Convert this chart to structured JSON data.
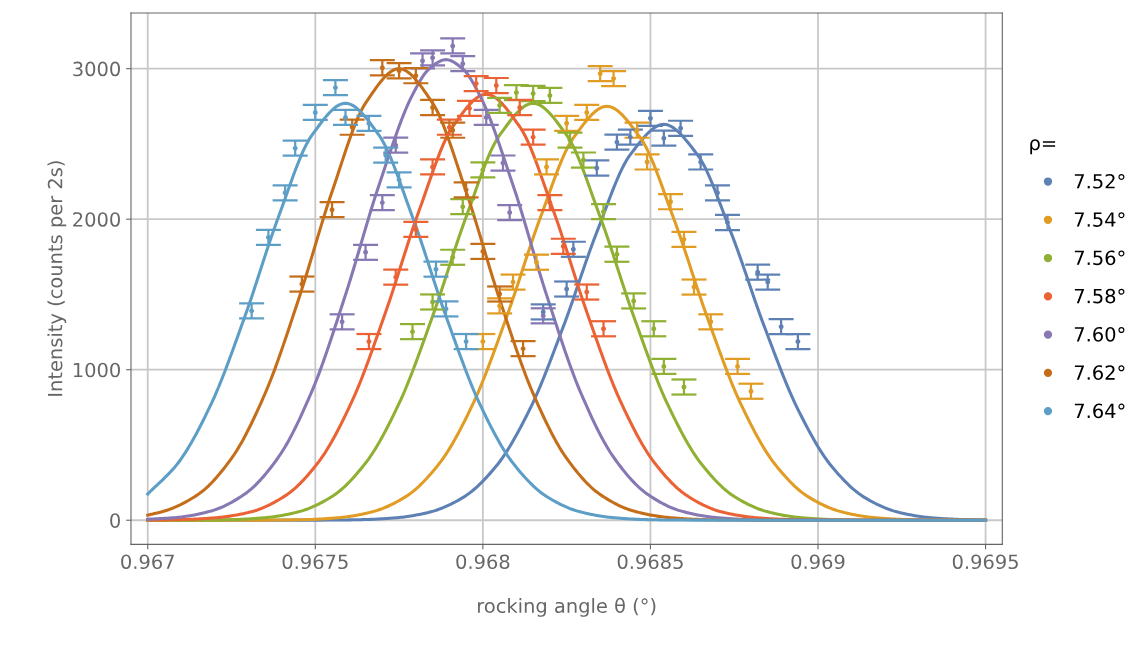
{
  "chart_data": {
    "type": "scatter",
    "xlabel": "rocking angle θ (°)",
    "ylabel": "Intensity (counts per 2s)",
    "legend_title": "ρ=",
    "legend": "right",
    "grid": true,
    "xlim": [
      0.96695,
      0.96955
    ],
    "ylim": [
      -160,
      3370
    ],
    "xticks": [
      0.967,
      0.9675,
      0.968,
      0.9685,
      0.969,
      0.9695
    ],
    "yticks": [
      0,
      1000,
      2000,
      3000
    ],
    "series": [
      {
        "type": "line",
        "color": "#5e81b5",
        "x": [
          0.967,
          0.96754,
          0.96764,
          0.96774,
          0.96784,
          0.96794,
          0.96804,
          0.96814,
          0.96824,
          0.96834,
          0.96844,
          0.96854,
          0.96864,
          0.96874,
          0.96884,
          0.96894,
          0.96904,
          0.96914,
          0.96924,
          0.96934,
          0.96944,
          0.9695
        ],
        "values": [
          0,
          1,
          4,
          16,
          53,
          150,
          360,
          737,
          1286,
          1914,
          2429,
          2630,
          2429,
          1914,
          1286,
          737,
          360,
          150,
          53,
          16,
          4,
          1
        ]
      },
      {
        "type": "line",
        "color": "#e19c24",
        "x": [
          0.967,
          0.96737,
          0.96747,
          0.96757,
          0.96767,
          0.96777,
          0.96787,
          0.96797,
          0.96807,
          0.96817,
          0.96827,
          0.96837,
          0.96847,
          0.96857,
          0.96867,
          0.96877,
          0.96887,
          0.96897,
          0.96907,
          0.96917,
          0.96927,
          0.96937,
          0.9695
        ],
        "values": [
          0,
          1,
          4,
          17,
          56,
          157,
          377,
          771,
          1345,
          2001,
          2540,
          2750,
          2540,
          2001,
          1345,
          771,
          377,
          157,
          56,
          17,
          4,
          1,
          0
        ]
      },
      {
        "type": "line",
        "color": "#8fb032",
        "x": [
          0.967,
          0.96715,
          0.96725,
          0.96735,
          0.96745,
          0.96755,
          0.96765,
          0.96775,
          0.96785,
          0.96795,
          0.96805,
          0.96815,
          0.96825,
          0.96835,
          0.96845,
          0.96855,
          0.96865,
          0.96875,
          0.96885,
          0.96895,
          0.96905,
          0.96915,
          0.9695
        ],
        "values": [
          0,
          1,
          4,
          17,
          56,
          158,
          380,
          776,
          1355,
          2015,
          2558,
          2770,
          2558,
          2015,
          1355,
          776,
          380,
          158,
          56,
          17,
          4,
          1,
          0
        ]
      },
      {
        "type": "line",
        "color": "#eb6235",
        "x": [
          0.967,
          0.96711,
          0.96721,
          0.96731,
          0.96741,
          0.96751,
          0.96761,
          0.96771,
          0.96781,
          0.96791,
          0.96801,
          0.96811,
          0.96821,
          0.96831,
          0.96841,
          0.96851,
          0.96861,
          0.96871,
          0.96881,
          0.96891,
          0.96901,
          0.9695
        ],
        "values": [
          1,
          5,
          18,
          57,
          162,
          388,
          793,
          1384,
          2059,
          2614,
          2830,
          2614,
          2059,
          1384,
          793,
          388,
          162,
          57,
          18,
          5,
          1,
          0
        ]
      },
      {
        "type": "line",
        "color": "#8778b3",
        "x": [
          0.967,
          0.96709,
          0.96719,
          0.96729,
          0.96739,
          0.96749,
          0.96759,
          0.96769,
          0.96779,
          0.96784,
          0.96789,
          0.96794,
          0.96799,
          0.96809,
          0.96819,
          0.96829,
          0.96839,
          0.96849,
          0.96859,
          0.96869,
          0.96879,
          0.96889,
          0.9695
        ],
        "values": [
          6,
          19,
          62,
          175,
          419,
          858,
          1497,
          2226,
          2826,
          2999,
          3060,
          2999,
          2826,
          2226,
          1497,
          858,
          419,
          175,
          62,
          19,
          5,
          1,
          0
        ]
      },
      {
        "type": "line",
        "color": "#c56e1a",
        "x": [
          0.967,
          0.96705,
          0.96715,
          0.96725,
          0.96735,
          0.96745,
          0.96755,
          0.96765,
          0.96775,
          0.96785,
          0.96795,
          0.96805,
          0.96815,
          0.96825,
          0.96835,
          0.96845,
          0.96855,
          0.96865,
          0.96875,
          0.9695
        ],
        "values": [
          34,
          61,
          171,
          411,
          841,
          1467,
          2183,
          2771,
          3000,
          2771,
          2183,
          1467,
          841,
          411,
          171,
          61,
          19,
          5,
          1,
          0
        ]
      },
      {
        "type": "line",
        "color": "#5d9ec7",
        "x": [
          0.967,
          0.96709,
          0.96719,
          0.96729,
          0.96739,
          0.96749,
          0.96759,
          0.96769,
          0.96779,
          0.96789,
          0.96799,
          0.96809,
          0.96819,
          0.96829,
          0.96839,
          0.96849,
          0.96859,
          0.9695
        ],
        "values": [
          174,
          379,
          776,
          1355,
          2015,
          2558,
          2770,
          2558,
          2015,
          1355,
          776,
          379,
          158,
          56,
          17,
          4,
          1,
          0
        ]
      },
      {
        "name": "7.52°",
        "marker": "circle",
        "color": "#5e81b5",
        "x": [
          0.96818,
          0.96825,
          0.96827,
          0.96834,
          0.9684,
          0.96844,
          0.9685,
          0.96854,
          0.96859,
          0.96865,
          0.9687,
          0.96873,
          0.96882,
          0.96885,
          0.96889,
          0.96894
        ],
        "values": [
          1384,
          1536,
          1800,
          2340,
          2512,
          2545,
          2670,
          2538,
          2604,
          2380,
          2175,
          1978,
          1648,
          1582,
          1286,
          1187
        ],
        "errors": [
          50,
          50,
          50,
          50,
          50,
          50,
          50,
          50,
          50,
          50,
          50,
          50,
          50,
          50,
          50,
          50
        ]
      },
      {
        "name": "7.54°",
        "marker": "circle",
        "color": "#e19c24",
        "x": [
          0.968,
          0.96805,
          0.96809,
          0.96816,
          0.96819,
          0.96825,
          0.96831,
          0.96835,
          0.96839,
          0.96846,
          0.96849,
          0.96856,
          0.9686,
          0.96863,
          0.96868,
          0.96876,
          0.9688
        ],
        "values": [
          1187,
          1424,
          1582,
          1714,
          2347,
          2637,
          2709,
          2967,
          2934,
          2591,
          2380,
          2116,
          1866,
          1549,
          1318,
          1022,
          857
        ],
        "errors": [
          50,
          50,
          50,
          50,
          50,
          50,
          50,
          50,
          50,
          50,
          50,
          50,
          50,
          50,
          50,
          50,
          50
        ]
      },
      {
        "name": "7.56°",
        "marker": "circle",
        "color": "#8fb032",
        "x": [
          0.96779,
          0.96785,
          0.96791,
          0.96794,
          0.968,
          0.96805,
          0.9681,
          0.96815,
          0.9682,
          0.96826,
          0.9683,
          0.96836,
          0.9684,
          0.96845,
          0.96851,
          0.96854,
          0.9686
        ],
        "values": [
          1253,
          1450,
          1747,
          2083,
          2327,
          2756,
          2841,
          2835,
          2822,
          2525,
          2393,
          2050,
          1767,
          1457,
          1272,
          1022,
          885
        ],
        "errors": [
          50,
          50,
          50,
          50,
          50,
          50,
          50,
          50,
          50,
          50,
          50,
          50,
          50,
          50,
          50,
          50,
          50
        ]
      },
      {
        "name": "7.58°",
        "marker": "circle",
        "color": "#eb6235",
        "x": [
          0.96766,
          0.96774,
          0.9678,
          0.96785,
          0.9679,
          0.96796,
          0.96798,
          0.96804,
          0.96811,
          0.96815,
          0.9682,
          0.96824,
          0.96831,
          0.96836
        ],
        "values": [
          1187,
          1615,
          1932,
          2347,
          2611,
          2736,
          2901,
          2888,
          2742,
          2545,
          2110,
          1820,
          1516,
          1272
        ],
        "errors": [
          50,
          50,
          50,
          50,
          50,
          50,
          50,
          50,
          50,
          50,
          50,
          50,
          50,
          50
        ]
      },
      {
        "name": "7.60°",
        "marker": "circle",
        "color": "#8778b3",
        "x": [
          0.96758,
          0.96765,
          0.9677,
          0.96774,
          0.96782,
          0.96785,
          0.96791,
          0.96794,
          0.96801,
          0.96806,
          0.96808,
          0.96818
        ],
        "values": [
          1318,
          1780,
          2110,
          2492,
          3052,
          3072,
          3151,
          3033,
          2676,
          2373,
          2044,
          1358
        ],
        "errors": [
          50,
          50,
          50,
          50,
          50,
          50,
          50,
          50,
          50,
          50,
          50,
          50
        ]
      },
      {
        "name": "7.62°",
        "marker": "circle",
        "color": "#c56e1a",
        "x": [
          0.96746,
          0.96755,
          0.96761,
          0.9677,
          0.96775,
          0.9678,
          0.96785,
          0.96791,
          0.96795,
          0.968,
          0.96805,
          0.96812
        ],
        "values": [
          1569,
          2063,
          2611,
          3006,
          2986,
          2953,
          2742,
          2591,
          2195,
          1786,
          1503,
          1140
        ],
        "errors": [
          50,
          50,
          50,
          50,
          50,
          50,
          50,
          50,
          50,
          50,
          50,
          50
        ]
      },
      {
        "name": "7.64°",
        "marker": "circle",
        "color": "#5d9ec7",
        "x": [
          0.96731,
          0.96736,
          0.96741,
          0.96744,
          0.9675,
          0.96756,
          0.96759,
          0.96766,
          0.96771,
          0.96775,
          0.96786,
          0.96789,
          0.96795
        ],
        "values": [
          1391,
          1879,
          2175,
          2472,
          2709,
          2874,
          2676,
          2637,
          2426,
          2261,
          1668,
          1404,
          1187
        ],
        "errors": [
          50,
          50,
          50,
          50,
          50,
          50,
          50,
          50,
          50,
          50,
          50,
          50,
          50
        ]
      }
    ]
  }
}
